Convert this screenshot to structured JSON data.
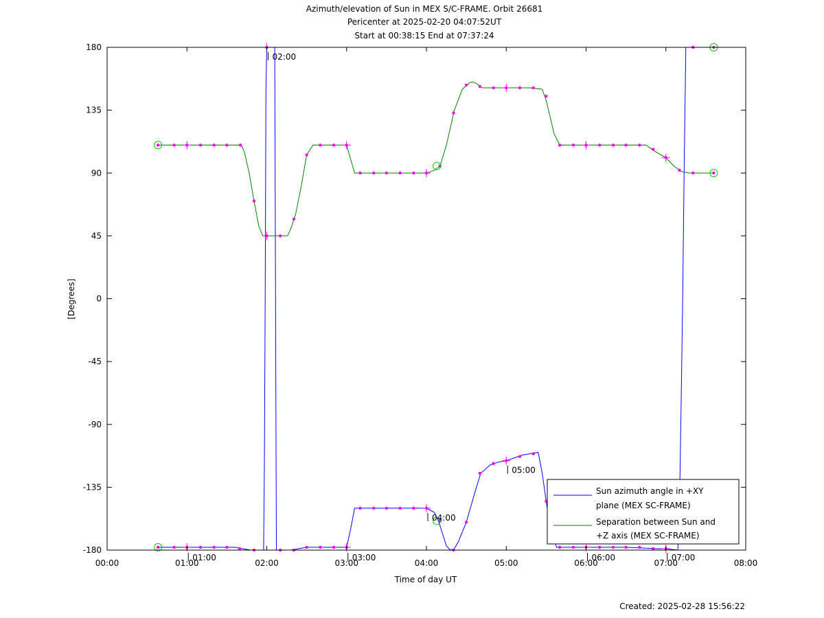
{
  "title_lines": [
    "Azimuth/elevation of Sun in MEX S/C-FRAME.  Orbit 26681",
    "Pericenter at 2025-02-20 04:07:52UT",
    "Start at 00:38:15 End at 07:37:24"
  ],
  "footer": {
    "created": "Created: 2025-02-28 15:56:22"
  },
  "chart_data": {
    "type": "line",
    "title": "Azimuth/elevation of Sun in MEX S/C-FRAME.  Orbit 26681",
    "subtitle": [
      "Pericenter at 2025-02-20 04:07:52UT",
      "Start at 00:38:15 End at 07:37:24"
    ],
    "xlabel": "Time of day UT",
    "ylabel": "[Degrees]",
    "xlim": [
      0,
      8
    ],
    "ylim": [
      -180,
      180
    ],
    "x_unit": "hours UT",
    "xticks": [
      0,
      1,
      2,
      3,
      4,
      5,
      6,
      7,
      8
    ],
    "xtick_labels": [
      "00:00",
      "01:00",
      "02:00",
      "03:00",
      "04:00",
      "05:00",
      "06:00",
      "07:00",
      "08:00"
    ],
    "yticks": [
      180,
      135,
      90,
      45,
      0,
      -45,
      -90,
      -135,
      -180
    ],
    "ytick_labels": [
      "180",
      "135",
      "90",
      "45",
      "0",
      "-45",
      "-90",
      "-135",
      "-180"
    ],
    "grid": false,
    "legend_position": "bottom-right",
    "series": [
      {
        "name": "Sun azimuth angle in +XY\nplane (MEX SC-FRAME)",
        "color": "#0000ff",
        "segments": [
          [
            [
              0.6375,
              -178
            ],
            [
              1.0,
              -178
            ],
            [
              1.3,
              -178
            ],
            [
              1.6,
              -178
            ],
            [
              1.7,
              -179
            ],
            [
              1.8,
              -180
            ],
            [
              1.96,
              -180
            ],
            [
              1.97,
              -120
            ],
            [
              1.98,
              0
            ],
            [
              1.99,
              150
            ],
            [
              2.0,
              180
            ],
            [
              2.1,
              180
            ],
            [
              2.11,
              0
            ],
            [
              2.12,
              -180
            ],
            [
              2.3,
              -180
            ],
            [
              2.5,
              -178
            ],
            [
              2.7,
              -178
            ],
            [
              2.95,
              -178
            ],
            [
              3.0,
              -178
            ],
            [
              3.05,
              -165
            ],
            [
              3.1,
              -150
            ],
            [
              3.3,
              -150
            ],
            [
              3.6,
              -150
            ],
            [
              4.0,
              -150
            ],
            [
              4.1,
              -153
            ],
            [
              4.15,
              -159
            ],
            [
              4.2,
              -168
            ],
            [
              4.25,
              -177
            ],
            [
              4.3,
              -180
            ],
            [
              4.35,
              -179
            ],
            [
              4.4,
              -174
            ],
            [
              4.5,
              -160
            ],
            [
              4.6,
              -140
            ],
            [
              4.68,
              -125
            ],
            [
              4.8,
              -119
            ],
            [
              4.9,
              -117
            ],
            [
              5.0,
              -116
            ],
            [
              5.1,
              -114
            ],
            [
              5.2,
              -112
            ],
            [
              5.3,
              -111
            ],
            [
              5.4,
              -110
            ],
            [
              5.45,
              -125
            ],
            [
              5.5,
              -145
            ],
            [
              5.55,
              -163
            ],
            [
              5.63,
              -178
            ],
            [
              6.0,
              -178
            ],
            [
              6.5,
              -178
            ],
            [
              6.9,
              -179
            ],
            [
              7.0,
              -179
            ],
            [
              7.15,
              -180
            ],
            [
              7.17,
              -150
            ],
            [
              7.19,
              -80
            ],
            [
              7.21,
              0
            ],
            [
              7.23,
              100
            ],
            [
              7.25,
              180
            ],
            [
              7.6,
              180
            ]
          ]
        ],
        "markers": [
          [
            0.6375,
            -178
          ],
          [
            0.84,
            -178
          ],
          [
            1.0,
            -178
          ],
          [
            1.17,
            -178
          ],
          [
            1.34,
            -178
          ],
          [
            1.5,
            -178
          ],
          [
            1.66,
            -179
          ],
          [
            1.84,
            -180
          ],
          [
            2.0,
            180
          ],
          [
            2.17,
            -180
          ],
          [
            2.34,
            -180
          ],
          [
            2.5,
            -178
          ],
          [
            2.67,
            -178
          ],
          [
            2.84,
            -178
          ],
          [
            3.0,
            -178
          ],
          [
            3.17,
            -150
          ],
          [
            3.34,
            -150
          ],
          [
            3.5,
            -150
          ],
          [
            3.67,
            -150
          ],
          [
            3.84,
            -150
          ],
          [
            4.0,
            -150
          ],
          [
            4.17,
            -159
          ],
          [
            4.34,
            -180
          ],
          [
            4.5,
            -160
          ],
          [
            4.67,
            -125
          ],
          [
            4.84,
            -118
          ],
          [
            5.0,
            -116
          ],
          [
            5.17,
            -113
          ],
          [
            5.34,
            -111
          ],
          [
            5.5,
            -145
          ],
          [
            5.67,
            -178
          ],
          [
            5.84,
            -178
          ],
          [
            6.0,
            -178
          ],
          [
            6.17,
            -178
          ],
          [
            6.34,
            -178
          ],
          [
            6.5,
            -178
          ],
          [
            6.67,
            -178
          ],
          [
            6.84,
            -179
          ],
          [
            7.0,
            -179
          ],
          [
            7.34,
            180
          ],
          [
            7.6,
            180
          ]
        ],
        "labels": [
          {
            "x": 2.0,
            "y": 180,
            "text": "02:00"
          },
          {
            "x": 4.0,
            "y": -150,
            "text": "04:00"
          },
          {
            "x": 5.0,
            "y": -116,
            "text": "05:00"
          },
          {
            "x": 1.0,
            "y": -178,
            "text": "01:00"
          },
          {
            "x": 3.0,
            "y": -178,
            "text": "03:00"
          },
          {
            "x": 6.0,
            "y": -178,
            "text": "06:00"
          },
          {
            "x": 7.0,
            "y": -179,
            "text": "07:00"
          }
        ]
      },
      {
        "name": "Separation between Sun and\n+Z axis (MEX SC-FRAME)",
        "color": "#008000",
        "points": [
          [
            0.6375,
            110
          ],
          [
            1.0,
            110
          ],
          [
            1.5,
            110
          ],
          [
            1.68,
            110
          ],
          [
            1.72,
            105
          ],
          [
            1.78,
            90
          ],
          [
            1.84,
            70
          ],
          [
            1.9,
            52
          ],
          [
            1.95,
            45
          ],
          [
            2.26,
            45
          ],
          [
            2.3,
            50
          ],
          [
            2.36,
            60
          ],
          [
            2.43,
            80
          ],
          [
            2.5,
            103
          ],
          [
            2.58,
            110
          ],
          [
            3.0,
            110
          ],
          [
            3.05,
            100
          ],
          [
            3.1,
            90
          ],
          [
            3.5,
            90
          ],
          [
            4.0,
            90
          ],
          [
            4.1,
            92
          ],
          [
            4.17,
            95
          ],
          [
            4.25,
            110
          ],
          [
            4.35,
            135
          ],
          [
            4.45,
            150
          ],
          [
            4.55,
            155
          ],
          [
            4.6,
            155
          ],
          [
            4.7,
            151
          ],
          [
            5.0,
            151
          ],
          [
            5.3,
            151
          ],
          [
            5.45,
            150
          ],
          [
            5.5,
            142
          ],
          [
            5.6,
            118
          ],
          [
            5.67,
            110
          ],
          [
            6.0,
            110
          ],
          [
            6.5,
            110
          ],
          [
            6.75,
            110
          ],
          [
            6.85,
            106
          ],
          [
            7.0,
            101
          ],
          [
            7.1,
            95
          ],
          [
            7.2,
            91
          ],
          [
            7.3,
            90
          ],
          [
            7.6,
            90
          ]
        ],
        "markers": [
          [
            0.6375,
            110
          ],
          [
            0.84,
            110
          ],
          [
            1.0,
            110
          ],
          [
            1.17,
            110
          ],
          [
            1.34,
            110
          ],
          [
            1.5,
            110
          ],
          [
            1.67,
            110
          ],
          [
            1.84,
            70
          ],
          [
            2.0,
            45
          ],
          [
            2.17,
            45
          ],
          [
            2.34,
            57
          ],
          [
            2.5,
            103
          ],
          [
            2.67,
            110
          ],
          [
            2.84,
            110
          ],
          [
            3.0,
            110
          ],
          [
            3.17,
            90
          ],
          [
            3.34,
            90
          ],
          [
            3.5,
            90
          ],
          [
            3.67,
            90
          ],
          [
            3.84,
            90
          ],
          [
            4.0,
            90
          ],
          [
            4.17,
            95
          ],
          [
            4.34,
            133
          ],
          [
            4.5,
            153
          ],
          [
            4.67,
            152
          ],
          [
            4.84,
            151
          ],
          [
            5.0,
            151
          ],
          [
            5.17,
            151
          ],
          [
            5.34,
            151
          ],
          [
            5.5,
            145
          ],
          [
            5.67,
            110
          ],
          [
            5.84,
            110
          ],
          [
            6.0,
            110
          ],
          [
            6.17,
            110
          ],
          [
            6.34,
            110
          ],
          [
            6.5,
            110
          ],
          [
            6.67,
            110
          ],
          [
            6.84,
            107
          ],
          [
            7.0,
            101
          ],
          [
            7.17,
            92
          ],
          [
            7.34,
            90
          ],
          [
            7.6,
            90
          ]
        ]
      }
    ],
    "circle_markers": [
      [
        0.6375,
        110
      ],
      [
        0.6375,
        -178
      ],
      [
        4.13,
        95
      ],
      [
        4.13,
        -159
      ],
      [
        7.6,
        90
      ],
      [
        7.6,
        180
      ]
    ],
    "cross_markers": [
      [
        1.0,
        110
      ],
      [
        2.0,
        45
      ],
      [
        3.0,
        110
      ],
      [
        4.0,
        90
      ],
      [
        5.0,
        151
      ],
      [
        6.0,
        110
      ],
      [
        7.0,
        101
      ],
      [
        1.0,
        -178
      ],
      [
        2.0,
        180
      ],
      [
        3.0,
        -178
      ],
      [
        4.0,
        -150
      ],
      [
        5.0,
        -116
      ],
      [
        6.0,
        -178
      ],
      [
        7.0,
        -179
      ]
    ]
  },
  "colors": {
    "marker": "#ff00ff",
    "circle": "#00cc00",
    "axis": "#000000"
  }
}
